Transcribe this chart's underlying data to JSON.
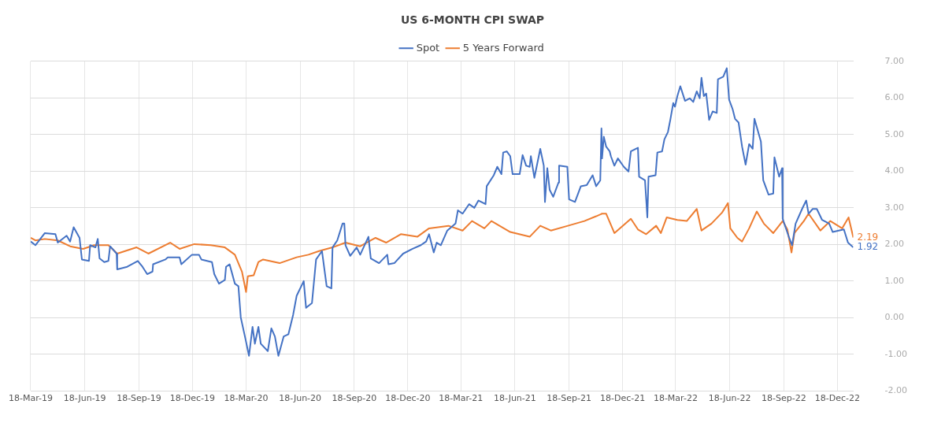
{
  "chart_data": {
    "type": "line",
    "title": "US 6-MONTH CPI SWAP",
    "legend": "top",
    "grid": true,
    "xlim": [
      "2019-03-18",
      "2023-01-14"
    ],
    "xticks": [
      {
        "value": "2019-03-18",
        "label": "18-Mar-19"
      },
      {
        "value": "2019-06-18",
        "label": "18-Jun-19"
      },
      {
        "value": "2019-09-18",
        "label": "18-Sep-19"
      },
      {
        "value": "2019-12-18",
        "label": "18-Dec-19"
      },
      {
        "value": "2020-03-18",
        "label": "18-Mar-20"
      },
      {
        "value": "2020-06-18",
        "label": "18-Jun-20"
      },
      {
        "value": "2020-09-18",
        "label": "18-Sep-20"
      },
      {
        "value": "2020-12-18",
        "label": "18-Dec-20"
      },
      {
        "value": "2021-03-18",
        "label": "18-Mar-21"
      },
      {
        "value": "2021-06-18",
        "label": "18-Jun-21"
      },
      {
        "value": "2021-09-18",
        "label": "18-Sep-21"
      },
      {
        "value": "2021-12-18",
        "label": "18-Dec-21"
      },
      {
        "value": "2022-03-18",
        "label": "18-Mar-22"
      },
      {
        "value": "2022-06-18",
        "label": "18-Jun-22"
      },
      {
        "value": "2022-09-18",
        "label": "18-Sep-22"
      },
      {
        "value": "2022-12-18",
        "label": "18-Dec-22"
      }
    ],
    "ylim": [
      -2,
      7
    ],
    "yticks": [
      {
        "value": -2,
        "label": "-2.00"
      },
      {
        "value": -1,
        "label": "-1.00"
      },
      {
        "value": 0,
        "label": "0.00"
      },
      {
        "value": 1,
        "label": "1.00"
      },
      {
        "value": 2,
        "label": "2.00"
      },
      {
        "value": 3,
        "label": "3.00"
      },
      {
        "value": 4,
        "label": "4.00"
      },
      {
        "value": 5,
        "label": "5.00"
      },
      {
        "value": 6,
        "label": "6.00"
      },
      {
        "value": 7,
        "label": "7.00"
      }
    ],
    "series": [
      {
        "name": "Spot",
        "color": "#4472c4",
        "x": [
          "2019-03-18",
          "2019-03-26",
          "2019-04-11",
          "2019-04-29",
          "2019-05-03",
          "2019-05-18",
          "2019-05-24",
          "2019-05-30",
          "2019-06-09",
          "2019-06-13",
          "2019-06-25",
          "2019-06-27",
          "2019-07-06",
          "2019-07-10",
          "2019-07-13",
          "2019-07-21",
          "2019-07-28",
          "2019-07-31",
          "2019-08-11",
          "2019-08-12",
          "2019-08-29",
          "2019-09-16",
          "2019-09-24",
          "2019-10-02",
          "2019-10-11",
          "2019-10-12",
          "2019-11-02",
          "2019-11-06",
          "2019-11-26",
          "2019-11-29",
          "2019-12-17",
          "2019-12-29",
          "2020-01-02",
          "2020-01-20",
          "2020-01-24",
          "2020-02-01",
          "2020-02-11",
          "2020-02-13",
          "2020-02-19",
          "2020-02-28",
          "2020-03-05",
          "2020-03-09",
          "2020-03-17",
          "2020-03-23",
          "2020-03-29",
          "2020-04-02",
          "2020-04-08",
          "2020-04-12",
          "2020-04-24",
          "2020-04-30",
          "2020-05-06",
          "2020-05-12",
          "2020-05-21",
          "2020-05-29",
          "2020-06-06",
          "2020-06-12",
          "2020-06-24",
          "2020-06-28",
          "2020-07-08",
          "2020-07-15",
          "2020-07-25",
          "2020-08-02",
          "2020-08-10",
          "2020-08-12",
          "2020-08-20",
          "2020-08-29",
          "2020-09-01",
          "2020-09-03",
          "2020-09-11",
          "2020-09-22",
          "2020-09-28",
          "2020-10-12",
          "2020-10-16",
          "2020-10-30",
          "2020-11-13",
          "2020-11-15",
          "2020-11-25",
          "2020-12-10",
          "2020-12-26",
          "2021-01-09",
          "2021-01-18",
          "2021-01-23",
          "2021-01-31",
          "2021-02-05",
          "2021-02-12",
          "2021-02-23",
          "2021-03-09",
          "2021-03-13",
          "2021-03-21",
          "2021-04-01",
          "2021-04-10",
          "2021-04-17",
          "2021-04-29",
          "2021-05-01",
          "2021-05-13",
          "2021-05-19",
          "2021-05-26",
          "2021-05-29",
          "2021-06-04",
          "2021-06-10",
          "2021-06-14",
          "2021-06-26",
          "2021-07-01",
          "2021-07-07",
          "2021-07-13",
          "2021-07-15",
          "2021-07-21",
          "2021-07-31",
          "2021-08-06",
          "2021-08-08",
          "2021-08-12",
          "2021-08-16",
          "2021-08-22",
          "2021-08-31",
          "2021-09-01",
          "2021-09-15",
          "2021-09-18",
          "2021-09-28",
          "2021-10-08",
          "2021-10-18",
          "2021-10-28",
          "2021-11-03",
          "2021-11-10",
          "2021-11-12",
          "2021-11-13",
          "2021-11-16",
          "2021-11-20",
          "2021-11-26",
          "2021-11-28",
          "2021-12-04",
          "2021-12-10",
          "2021-12-20",
          "2021-12-28",
          "2022-01-01",
          "2022-01-13",
          "2022-01-15",
          "2022-01-25",
          "2022-01-29",
          "2022-01-31",
          "2022-02-12",
          "2022-02-15",
          "2022-02-23",
          "2022-02-27",
          "2022-03-05",
          "2022-03-09",
          "2022-03-14",
          "2022-03-17",
          "2022-03-21",
          "2022-03-26",
          "2022-04-03",
          "2022-04-11",
          "2022-04-17",
          "2022-04-23",
          "2022-04-28",
          "2022-05-01",
          "2022-05-05",
          "2022-05-09",
          "2022-05-14",
          "2022-05-20",
          "2022-05-27",
          "2022-05-29",
          "2022-06-07",
          "2022-06-13",
          "2022-06-17",
          "2022-06-23",
          "2022-06-27",
          "2022-07-03",
          "2022-07-09",
          "2022-07-15",
          "2022-07-21",
          "2022-07-27",
          "2022-07-30",
          "2022-08-10",
          "2022-08-14",
          "2022-08-23",
          "2022-08-31",
          "2022-09-02",
          "2022-09-10",
          "2022-09-15",
          "2022-09-16",
          "2022-09-27",
          "2022-10-02",
          "2022-10-08",
          "2022-10-19",
          "2022-10-26",
          "2022-10-30",
          "2022-11-06",
          "2022-11-13",
          "2022-11-22",
          "2022-12-04",
          "2022-12-10",
          "2022-12-29",
          "2023-01-05",
          "2023-01-14"
        ],
        "values": [
          2.08,
          1.98,
          2.31,
          2.28,
          2.05,
          2.24,
          2.08,
          2.47,
          2.18,
          1.59,
          1.55,
          1.98,
          1.92,
          2.15,
          1.62,
          1.52,
          1.55,
          1.95,
          1.75,
          1.32,
          1.39,
          1.55,
          1.39,
          1.19,
          1.26,
          1.46,
          1.59,
          1.65,
          1.65,
          1.46,
          1.72,
          1.72,
          1.59,
          1.52,
          1.19,
          0.93,
          1.03,
          1.39,
          1.46,
          0.93,
          0.86,
          0.01,
          -0.58,
          -1.04,
          -0.25,
          -0.71,
          -0.25,
          -0.71,
          -0.91,
          -0.29,
          -0.51,
          -1.04,
          -0.51,
          -0.45,
          0.08,
          0.6,
          1.0,
          0.27,
          0.4,
          1.59,
          1.82,
          0.86,
          0.8,
          1.92,
          2.11,
          2.57,
          2.57,
          1.98,
          1.69,
          1.92,
          1.72,
          2.21,
          1.62,
          1.49,
          1.72,
          1.46,
          1.49,
          1.75,
          1.88,
          1.98,
          2.08,
          2.28,
          1.78,
          2.05,
          1.98,
          2.38,
          2.57,
          2.93,
          2.84,
          3.1,
          3.0,
          3.2,
          3.1,
          3.59,
          3.89,
          4.12,
          3.92,
          4.51,
          4.54,
          4.41,
          3.92,
          3.92,
          4.44,
          4.15,
          4.12,
          4.41,
          3.82,
          4.61,
          4.15,
          3.16,
          4.08,
          3.49,
          3.3,
          3.69,
          4.15,
          4.12,
          3.23,
          3.16,
          3.59,
          3.62,
          3.89,
          3.59,
          3.75,
          5.17,
          4.35,
          4.94,
          4.67,
          4.54,
          4.41,
          4.15,
          4.35,
          4.12,
          3.99,
          4.54,
          4.64,
          3.85,
          3.75,
          2.74,
          3.85,
          3.89,
          4.51,
          4.54,
          4.87,
          5.07,
          5.4,
          5.86,
          5.76,
          6.05,
          6.32,
          5.92,
          5.99,
          5.89,
          6.18,
          5.99,
          6.55,
          6.05,
          6.12,
          5.4,
          5.63,
          5.59,
          6.51,
          6.58,
          6.81,
          5.95,
          5.69,
          5.43,
          5.33,
          4.67,
          4.18,
          4.74,
          4.61,
          5.43,
          4.81,
          3.75,
          3.36,
          3.39,
          4.38,
          3.85,
          4.08,
          2.7,
          2.18,
          1.98,
          2.57,
          2.97,
          3.2,
          2.84,
          2.97,
          2.97,
          2.67,
          2.57,
          2.34,
          2.41,
          2.05,
          1.92
        ]
      },
      {
        "name": "5 Years Forward",
        "color": "#ed7d31",
        "x": [
          "2019-03-18",
          "2019-03-26",
          "2019-04-11",
          "2019-05-03",
          "2019-05-24",
          "2019-06-15",
          "2019-07-04",
          "2019-07-28",
          "2019-08-12",
          "2019-09-14",
          "2019-10-04",
          "2019-11-10",
          "2019-11-26",
          "2019-12-21",
          "2020-01-18",
          "2020-02-11",
          "2020-02-28",
          "2020-03-11",
          "2020-03-18",
          "2020-03-21",
          "2020-03-31",
          "2020-04-08",
          "2020-04-16",
          "2020-05-14",
          "2020-06-12",
          "2020-07-02",
          "2020-07-20",
          "2020-08-12",
          "2020-09-03",
          "2020-09-28",
          "2020-10-24",
          "2020-11-11",
          "2020-12-06",
          "2021-01-03",
          "2021-01-23",
          "2021-02-25",
          "2021-03-21",
          "2021-04-06",
          "2021-04-27",
          "2021-05-09",
          "2021-06-10",
          "2021-07-13",
          "2021-07-31",
          "2021-08-18",
          "2021-09-16",
          "2021-10-14",
          "2021-11-03",
          "2021-11-13",
          "2021-11-20",
          "2021-12-04",
          "2022-01-01",
          "2022-01-13",
          "2022-01-27",
          "2022-02-13",
          "2022-02-21",
          "2022-03-03",
          "2022-03-21",
          "2022-04-06",
          "2022-04-23",
          "2022-05-01",
          "2022-05-18",
          "2022-06-05",
          "2022-06-15",
          "2022-06-19",
          "2022-07-01",
          "2022-07-09",
          "2022-07-21",
          "2022-08-03",
          "2022-08-15",
          "2022-08-31",
          "2022-09-16",
          "2022-09-24",
          "2022-10-01",
          "2022-10-06",
          "2022-10-22",
          "2022-10-30",
          "2022-11-19",
          "2022-12-06",
          "2022-12-26",
          "2023-01-06",
          "2023-01-14"
        ],
        "values": [
          2.18,
          2.11,
          2.15,
          2.11,
          1.95,
          1.88,
          1.98,
          1.98,
          1.75,
          1.92,
          1.75,
          2.05,
          1.88,
          2.01,
          1.98,
          1.92,
          1.72,
          1.26,
          0.7,
          1.13,
          1.16,
          1.52,
          1.59,
          1.49,
          1.65,
          1.72,
          1.82,
          1.92,
          2.05,
          1.95,
          2.18,
          2.05,
          2.28,
          2.21,
          2.44,
          2.51,
          2.38,
          2.64,
          2.44,
          2.64,
          2.34,
          2.21,
          2.51,
          2.38,
          2.51,
          2.64,
          2.77,
          2.84,
          2.84,
          2.31,
          2.7,
          2.41,
          2.28,
          2.51,
          2.31,
          2.74,
          2.67,
          2.64,
          2.97,
          2.38,
          2.57,
          2.87,
          3.13,
          2.44,
          2.18,
          2.08,
          2.44,
          2.9,
          2.57,
          2.31,
          2.64,
          2.41,
          1.78,
          2.31,
          2.64,
          2.84,
          2.38,
          2.64,
          2.44,
          2.74,
          2.19
        ]
      }
    ],
    "annotations": [
      {
        "text": "1.92",
        "x": "2023-01-14",
        "y": 1.92
      },
      {
        "text": "2.19",
        "x": "2023-01-14",
        "y": 2.19
      }
    ]
  }
}
